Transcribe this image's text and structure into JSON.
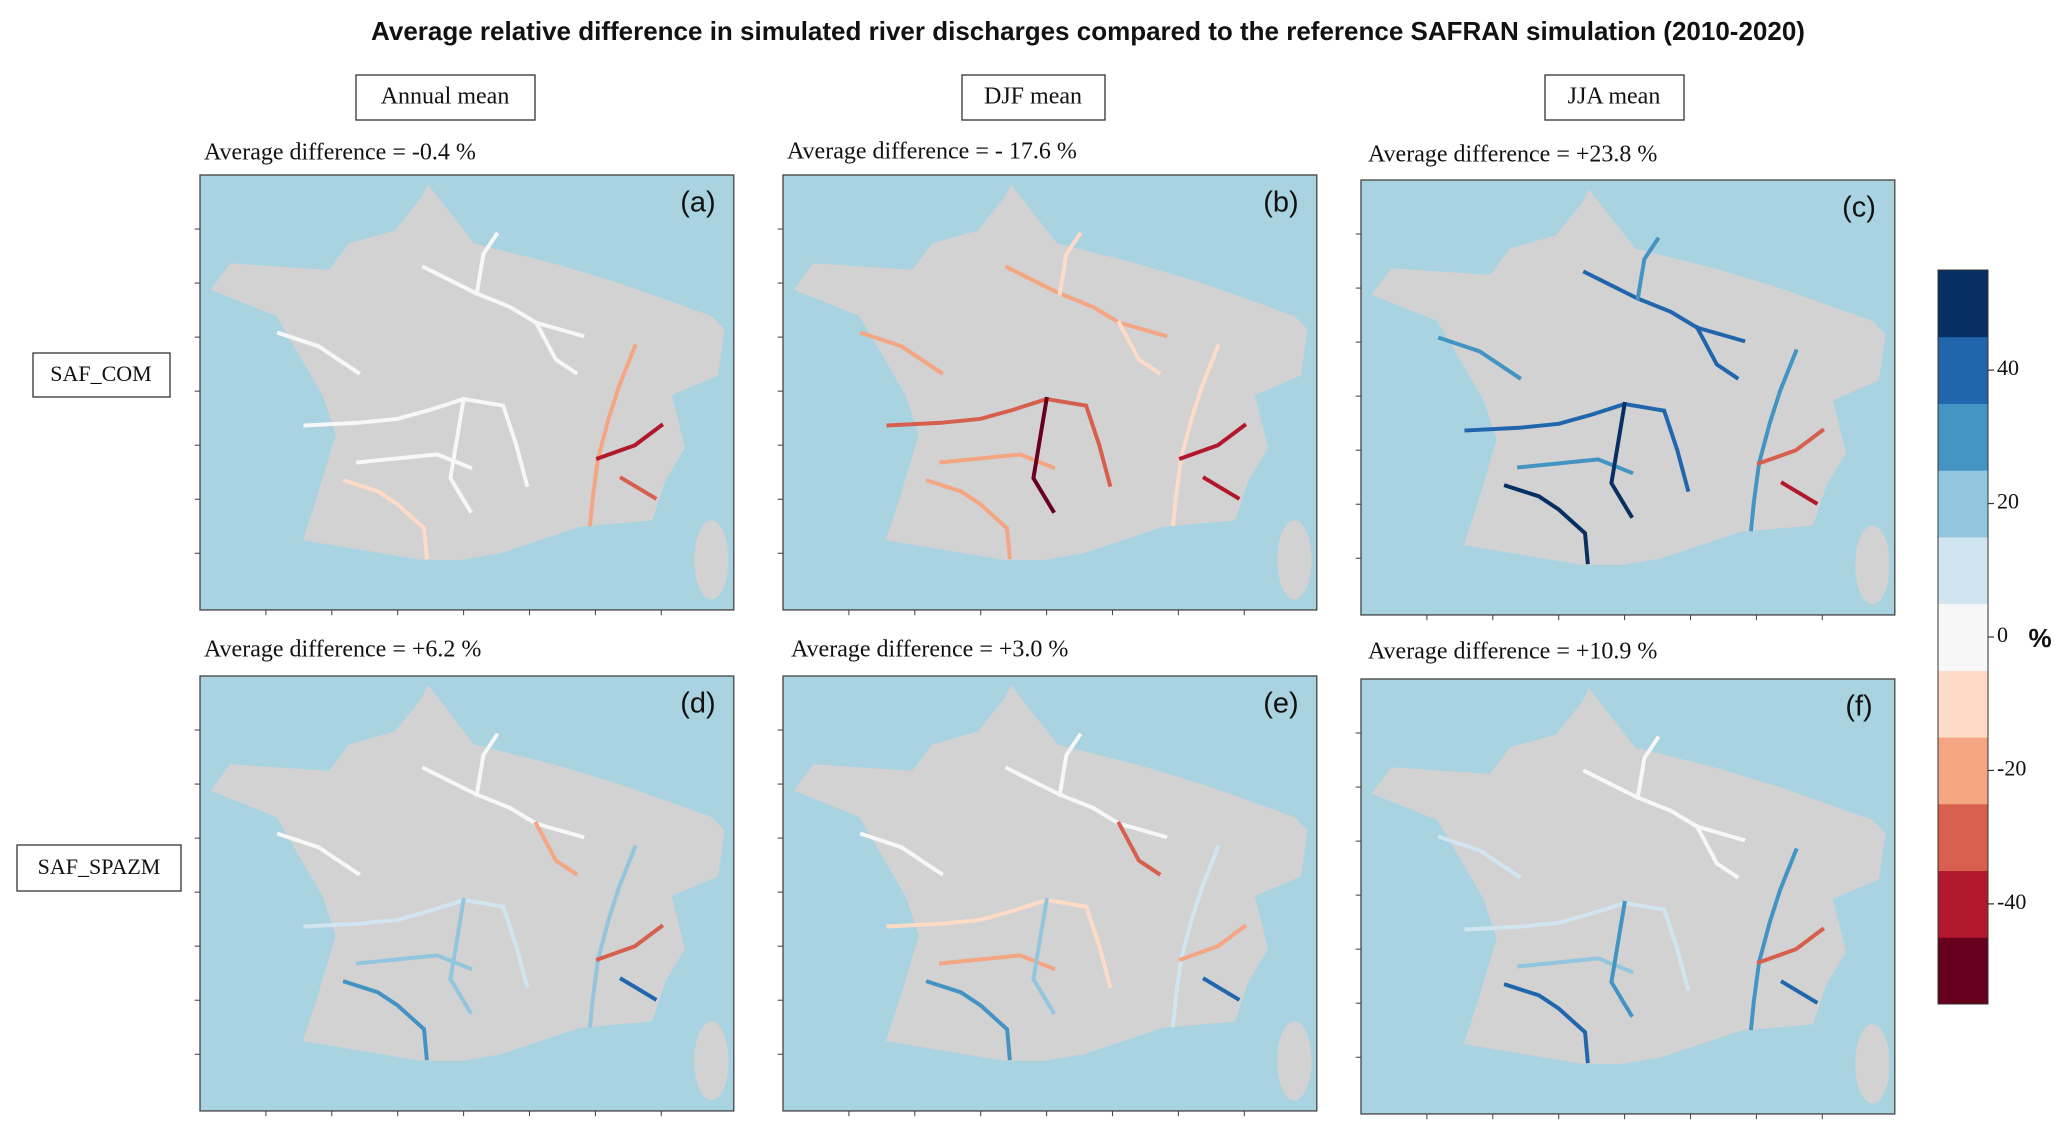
{
  "header": {
    "title": "Average relative difference in simulated river discharges compared to the reference SAFRAN simulation (2010-2020)"
  },
  "columns": [
    "Annual mean",
    "DJF mean",
    "JJA mean"
  ],
  "rows": [
    "SAF_COM",
    "SAF_SPAZM"
  ],
  "panels": [
    {
      "label": "(a)",
      "average": "Average difference = -0.4 %"
    },
    {
      "label": "(b)",
      "average": "Average difference = - 17.6 %"
    },
    {
      "label": "(c)",
      "average": "Average difference = +23.8 %"
    },
    {
      "label": "(d)",
      "average": "Average difference = +6.2 %"
    },
    {
      "label": "(e)",
      "average": "Average difference = +3.0 %"
    },
    {
      "label": "(f)",
      "average": "Average difference = +10.9 %"
    }
  ],
  "colorbar": {
    "unit": "%",
    "clim": [
      -55,
      55
    ],
    "ticks": [
      40,
      20,
      0,
      -20,
      -40
    ],
    "colors": [
      "#67001f",
      "#b2182b",
      "#d6604d",
      "#f4a582",
      "#fddbc7",
      "#f7f7f7",
      "#d1e5f0",
      "#92c5de",
      "#4393c3",
      "#2166ac",
      "#053061"
    ]
  }
}
